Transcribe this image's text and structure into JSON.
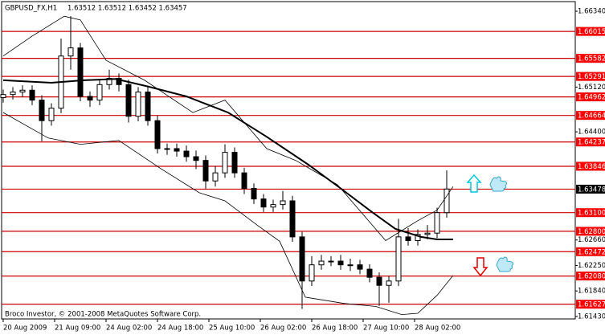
{
  "chart_data": {
    "type": "candlestick",
    "title": "GBPUSD_FX,H1",
    "quote": "1.63512 1.63512 1.63452 1.63457",
    "credit": "Broco Investor, © 2001-2008 MetaQuotes Software Corp.",
    "x": [
      0,
      3,
      6,
      9,
      12,
      15,
      18,
      21,
      24,
      27,
      30,
      33,
      36,
      39,
      42,
      45,
      48,
      51,
      54,
      57,
      60,
      63,
      66,
      69,
      72,
      75,
      78,
      81,
      84,
      87,
      90,
      93,
      96,
      99,
      102,
      105,
      108,
      111,
      114,
      117,
      120,
      123,
      126,
      129,
      132,
      135,
      138
    ],
    "open": [
      1.6495,
      1.65,
      1.6504,
      1.6507,
      1.6491,
      1.6458,
      1.6478,
      1.6562,
      1.6575,
      1.6497,
      1.6491,
      1.6516,
      1.6526,
      1.6516,
      1.6465,
      1.6504,
      1.6458,
      1.6413,
      1.6413,
      1.6409,
      1.64,
      1.6394,
      1.6361,
      1.6374,
      1.6407,
      1.6374,
      1.6349,
      1.6332,
      1.6319,
      1.6323,
      1.6329,
      1.6271,
      1.62,
      1.6226,
      1.6232,
      1.6232,
      1.6226,
      1.6226,
      1.6219,
      1.6206,
      1.6193,
      1.62,
      1.6271,
      1.6265,
      1.6275,
      1.6277,
      1.631
    ],
    "high": [
      1.6508,
      1.6512,
      1.6515,
      1.6515,
      1.6499,
      1.6486,
      1.659,
      1.6626,
      1.6583,
      1.6505,
      1.6524,
      1.654,
      1.6534,
      1.6524,
      1.6512,
      1.6512,
      1.6466,
      1.6421,
      1.6421,
      1.6418,
      1.641,
      1.6402,
      1.6385,
      1.642,
      1.6415,
      1.6382,
      1.6357,
      1.634,
      1.6331,
      1.6345,
      1.6337,
      1.6279,
      1.624,
      1.6242,
      1.624,
      1.6242,
      1.6236,
      1.6234,
      1.6227,
      1.6214,
      1.6208,
      1.63,
      1.6285,
      1.6283,
      1.629,
      1.6318,
      1.6378
    ],
    "low": [
      1.6487,
      1.6492,
      1.6496,
      1.6483,
      1.6425,
      1.645,
      1.647,
      1.654,
      1.6489,
      1.648,
      1.6483,
      1.6508,
      1.6505,
      1.6455,
      1.6457,
      1.645,
      1.6405,
      1.6403,
      1.64,
      1.6392,
      1.638,
      1.6348,
      1.6352,
      1.6366,
      1.6366,
      1.634,
      1.6324,
      1.6311,
      1.6311,
      1.6315,
      1.6263,
      1.6155,
      1.6192,
      1.6218,
      1.6224,
      1.6218,
      1.6216,
      1.6211,
      1.6198,
      1.616,
      1.6165,
      1.6192,
      1.6257,
      1.6257,
      1.6267,
      1.6269,
      1.6302
    ],
    "close": [
      1.65,
      1.6504,
      1.6507,
      1.6491,
      1.6458,
      1.6478,
      1.6562,
      1.6575,
      1.6497,
      1.6491,
      1.6516,
      1.6526,
      1.6516,
      1.6465,
      1.6504,
      1.6458,
      1.6413,
      1.6413,
      1.6409,
      1.64,
      1.6394,
      1.6361,
      1.6374,
      1.6407,
      1.6374,
      1.6349,
      1.6332,
      1.6319,
      1.6323,
      1.6329,
      1.6271,
      1.62,
      1.6226,
      1.6232,
      1.6232,
      1.6226,
      1.6226,
      1.6219,
      1.6206,
      1.6193,
      1.62,
      1.6271,
      1.6265,
      1.6275,
      1.6277,
      1.631,
      1.6348
    ],
    "lines": [
      {
        "x": [
          0,
          15,
          25,
          35,
          45,
          57,
          70,
          82,
          95,
          105,
          115,
          122,
          130,
          135,
          140
        ],
        "values": [
          1.6523,
          1.6519,
          1.6523,
          1.6525,
          1.6513,
          1.6497,
          1.6471,
          1.6432,
          1.6387,
          1.6349,
          1.631,
          1.6284,
          1.6271,
          1.6267,
          1.6267
        ],
        "color": "#000000",
        "width": 2
      },
      {
        "x": [
          0,
          9,
          19,
          24,
          32,
          44,
          59,
          69,
          82,
          91,
          104,
          119,
          129,
          135,
          140
        ],
        "values": [
          1.6562,
          1.6594,
          1.6626,
          1.662,
          1.6555,
          1.6523,
          1.6471,
          1.6491,
          1.6413,
          1.6394,
          1.6355,
          1.6265,
          1.6297,
          1.6314,
          1.6352
        ],
        "color": "#000000",
        "width": 0.8
      },
      {
        "x": [
          0,
          14,
          24,
          36,
          49,
          61,
          69,
          79,
          86,
          94,
          106,
          116,
          124,
          129,
          135,
          140
        ],
        "values": [
          1.6471,
          1.643,
          1.642,
          1.6426,
          1.6381,
          1.6342,
          1.6329,
          1.629,
          1.6264,
          1.6174,
          1.6164,
          1.6159,
          1.6146,
          1.6148,
          1.6177,
          1.6209
        ],
        "color": "#000000",
        "width": 0.8
      }
    ],
    "levels": [
      {
        "value": 1.66015,
        "label": "1.66015",
        "color": "#ff0000"
      },
      {
        "value": 1.65582,
        "label": "1.65582",
        "color": "#ff0000"
      },
      {
        "value": 1.65291,
        "label": "1.65291",
        "color": "#ff0000"
      },
      {
        "value": 1.64962,
        "label": "1.64962",
        "color": "#ff0000"
      },
      {
        "value": 1.64664,
        "label": "1.64664",
        "color": "#ff0000"
      },
      {
        "value": 1.64237,
        "label": "1.64237",
        "color": "#ff0000"
      },
      {
        "value": 1.63846,
        "label": "1.63846",
        "color": "#ff0000"
      },
      {
        "value": 1.63478,
        "label": "1.63478",
        "color": "#000000"
      },
      {
        "value": 1.631,
        "label": "1.63100",
        "color": "#ff0000"
      },
      {
        "value": 1.628,
        "label": "1.62800",
        "color": "#ff0000"
      },
      {
        "value": 1.62472,
        "label": "1.62472",
        "color": "#ff0000"
      },
      {
        "value": 1.6208,
        "label": "1.62080",
        "color": "#ff0000"
      },
      {
        "value": 1.61627,
        "label": "1.61627",
        "color": "#ff0000"
      }
    ],
    "level_line_color": "#cc0000",
    "xlim": [
      -0.5,
      178
    ],
    "ylim": [
      1.6139,
      1.66495
    ],
    "xticks": [
      {
        "value": 0,
        "label": "20 Aug 2009"
      },
      {
        "value": 16,
        "label": "21 Aug 09:00"
      },
      {
        "value": 32,
        "label": "24 Aug 02:00"
      },
      {
        "value": 48,
        "label": "24 Aug 18:00"
      },
      {
        "value": 64,
        "label": "25 Aug 10:00"
      },
      {
        "value": 80,
        "label": "26 Aug 02:00"
      },
      {
        "value": 96,
        "label": "26 Aug 18:00"
      },
      {
        "value": 112,
        "label": "27 Aug 10:00"
      },
      {
        "value": 128,
        "label": "28 Aug 02:00"
      }
    ],
    "yticks": [
      {
        "value": 1.6634,
        "label": "1.66340"
      },
      {
        "value": 1.6512,
        "label": "1.65120"
      },
      {
        "value": 1.644,
        "label": "1.64400"
      },
      {
        "value": 1.6266,
        "label": "1.62660"
      },
      {
        "value": 1.6225,
        "label": "1.62250"
      },
      {
        "value": 1.6184,
        "label": "1.61840"
      },
      {
        "value": 1.6143,
        "label": "1.61430"
      }
    ]
  }
}
